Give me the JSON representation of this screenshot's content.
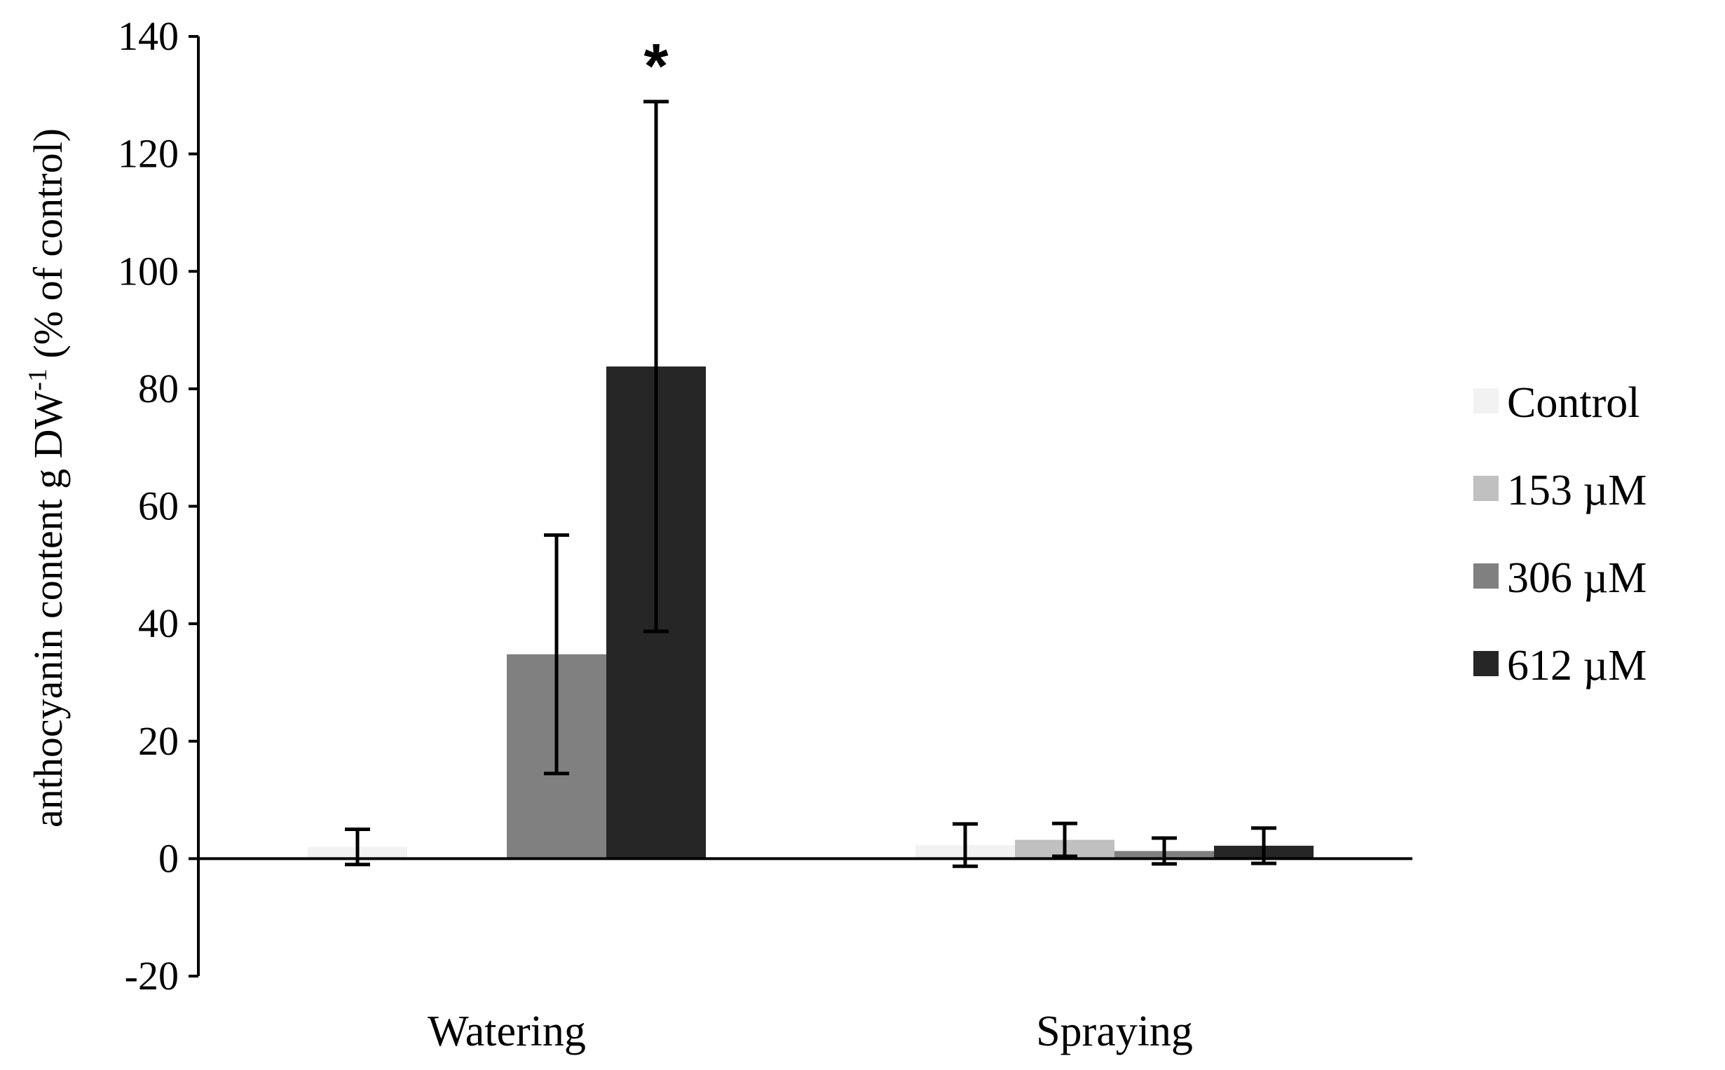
{
  "chart_data": {
    "type": "bar",
    "title": "",
    "xlabel": "",
    "ylabel": {
      "main": "anthocyanin content  g DW",
      "superscript": "-1",
      "suffix": " (% of control)"
    },
    "ylim": [
      -20,
      140
    ],
    "yticks": [
      -20,
      0,
      20,
      40,
      60,
      80,
      100,
      120,
      140
    ],
    "tick_labels": [
      "-20",
      "0",
      "20",
      "40",
      "60",
      "80",
      "100",
      "120",
      "140"
    ],
    "categories": [
      "Watering",
      "Spraying"
    ],
    "series": [
      {
        "name": "Control",
        "color": "#f2f2f2",
        "values": [
          2,
          2.3
        ],
        "errors": [
          3,
          3.6
        ]
      },
      {
        "name": "153  µM",
        "color": "#c0c0c0",
        "values": [
          0,
          3.2
        ],
        "errors": [
          null,
          2.8
        ]
      },
      {
        "name": "306  µM",
        "color": "#808080",
        "values": [
          34.8,
          1.3
        ],
        "errors": [
          20.3,
          2.2
        ]
      },
      {
        "name": "612  µM",
        "color": "#262626",
        "values": [
          83.8,
          2.2
        ],
        "errors": [
          45.1,
          3
        ]
      }
    ],
    "annotations": [
      {
        "text": "*",
        "series": "612  µM",
        "category": "Watering"
      }
    ],
    "legend_position": "right",
    "grid": false
  }
}
